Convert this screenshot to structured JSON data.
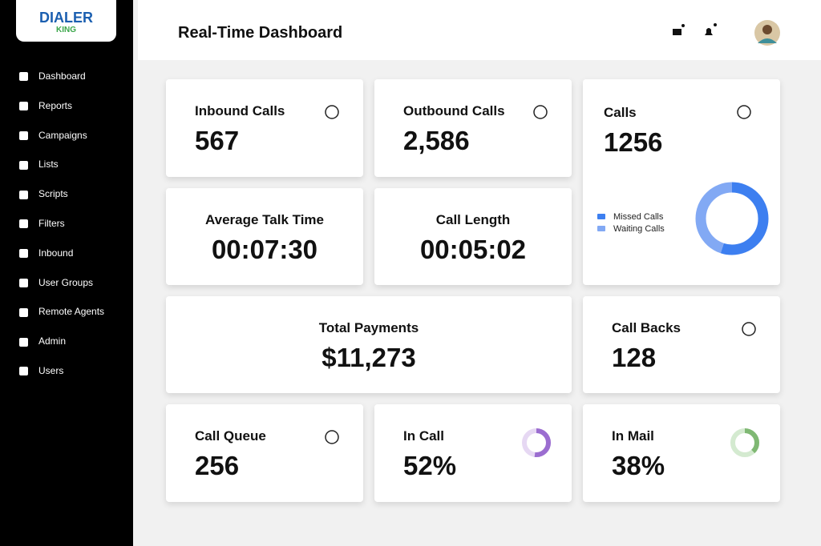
{
  "sidebar": {
    "logo": {
      "name": "DIALER",
      "sub": "KING"
    },
    "menu": [
      "Dashboard",
      "Reports",
      "Campaigns",
      "Lists",
      "Scripts",
      "Filters",
      "Inbound",
      "User Groups",
      "Remote Agents",
      "Admin",
      "Users"
    ]
  },
  "header": {
    "title": "Real-Time Dashboard"
  },
  "cards": [
    {
      "label": "Inbound Calls",
      "value": "567"
    },
    {
      "label": "Outbound Calls",
      "value": "2,586"
    },
    {
      "label": "Average Talk Time",
      "value": "00:07:30"
    },
    {
      "label": "Call Length",
      "value": "00:05:02"
    },
    {
      "label": "Total Payments",
      "value": "$11,273"
    },
    {
      "label": "Call Backs",
      "value": "128"
    },
    {
      "label": "Call Queue",
      "value": "256"
    },
    {
      "label": "In Call",
      "value": "52%",
      "ring": {
        "value": 52,
        "color": "#9b6dd0",
        "track": "#e6d8f3"
      }
    },
    {
      "label": "In Mail",
      "value": "38%",
      "ring": {
        "value": 38,
        "color": "#7fb873",
        "track": "#d4ead0"
      }
    }
  ],
  "calls_card": {
    "label": "Calls",
    "value": "1256",
    "donut": [
      {
        "name": "Missed Calls",
        "color": "#3d7ff0",
        "value": 55
      },
      {
        "name": "Waiting Calls",
        "color": "#82a9f4",
        "value": 45
      }
    ]
  }
}
